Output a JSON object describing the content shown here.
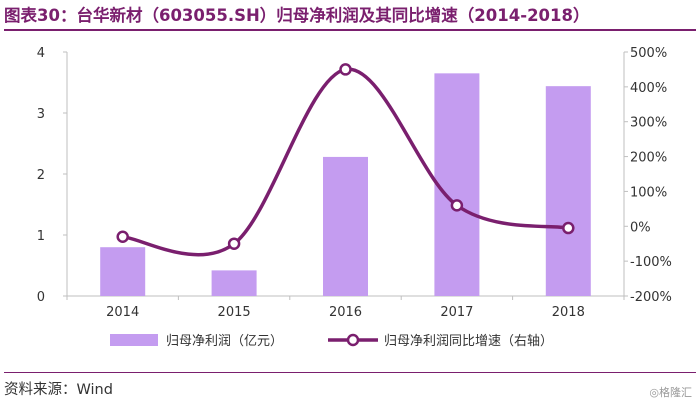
{
  "title": "图表30：台华新材（603055.SH）归母净利润及其同比增速（2014-2018）",
  "source": "资料来源：Wind",
  "watermark": "◎格隆汇",
  "chart_data": {
    "type": "bar",
    "categories": [
      "2014",
      "2015",
      "2016",
      "2017",
      "2018"
    ],
    "series": [
      {
        "name": "归母净利润（亿元）",
        "kind": "bar",
        "axis": "left",
        "values": [
          0.8,
          0.42,
          2.28,
          3.65,
          3.44
        ],
        "color": "#c49cf0"
      },
      {
        "name": "归母净利润同比增速（右轴）",
        "kind": "line",
        "axis": "right",
        "values": [
          -30,
          -50,
          450,
          60,
          -5
        ],
        "color": "#7a1f6e"
      }
    ],
    "y_left": {
      "min": 0,
      "max": 4,
      "ticks": [
        0,
        1,
        2,
        3,
        4
      ]
    },
    "y_right": {
      "min": -200,
      "max": 500,
      "ticks": [
        -200,
        -100,
        0,
        100,
        200,
        300,
        400,
        500
      ],
      "tick_labels": [
        "-200%",
        "-100%",
        "0%",
        "100%",
        "200%",
        "300%",
        "400%",
        "500%"
      ]
    },
    "legend_position": "bottom",
    "grid": false
  }
}
